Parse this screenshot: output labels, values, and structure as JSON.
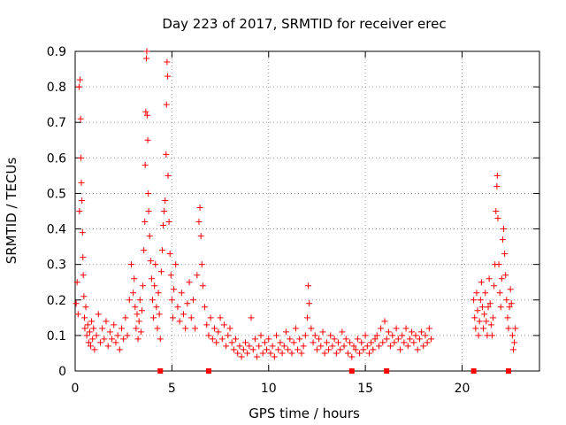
{
  "chart_data": {
    "type": "scatter",
    "title": "Day 223 of 2017, SRMTID for receiver erec",
    "xlabel": "GPS time / hours",
    "ylabel": "SRMTID / TECUs",
    "xlim": [
      0,
      24
    ],
    "ylim": [
      0,
      0.9
    ],
    "x_ticks": [
      0,
      5,
      10,
      15,
      20
    ],
    "y_ticks": [
      0,
      0.1,
      0.2,
      0.3,
      0.4,
      0.5,
      0.6,
      0.7,
      0.8,
      0.9
    ],
    "x_tick_labels": [
      "0",
      "5",
      "10",
      "15",
      "20"
    ],
    "y_tick_labels": [
      "0",
      "0.1",
      "0.2",
      "0.3",
      "0.4",
      "0.5",
      "0.6",
      "0.7",
      "0.8",
      "0.9"
    ],
    "grid": true,
    "marker": "+",
    "color": "#ff0000",
    "gap_markers_x": [
      4.4,
      6.9,
      14.3,
      16.1,
      20.6,
      22.4
    ],
    "series": [
      {
        "name": "SRMTID",
        "points": [
          [
            0.05,
            0.19
          ],
          [
            0.1,
            0.25
          ],
          [
            0.15,
            0.16
          ],
          [
            0.2,
            0.8
          ],
          [
            0.22,
            0.45
          ],
          [
            0.25,
            0.82
          ],
          [
            0.28,
            0.71
          ],
          [
            0.3,
            0.6
          ],
          [
            0.32,
            0.53
          ],
          [
            0.35,
            0.48
          ],
          [
            0.38,
            0.39
          ],
          [
            0.4,
            0.32
          ],
          [
            0.42,
            0.27
          ],
          [
            0.45,
            0.21
          ],
          [
            0.48,
            0.15
          ],
          [
            0.5,
            0.12
          ],
          [
            0.55,
            0.18
          ],
          [
            0.6,
            0.1
          ],
          [
            0.65,
            0.13
          ],
          [
            0.7,
            0.08
          ],
          [
            0.75,
            0.11
          ],
          [
            0.8,
            0.07
          ],
          [
            0.85,
            0.14
          ],
          [
            0.9,
            0.09
          ],
          [
            0.95,
            0.12
          ],
          [
            1.0,
            0.06
          ],
          [
            1.1,
            0.1
          ],
          [
            1.2,
            0.16
          ],
          [
            1.3,
            0.08
          ],
          [
            1.4,
            0.12
          ],
          [
            1.5,
            0.09
          ],
          [
            1.6,
            0.14
          ],
          [
            1.7,
            0.07
          ],
          [
            1.8,
            0.11
          ],
          [
            1.9,
            0.09
          ],
          [
            2.0,
            0.13
          ],
          [
            2.1,
            0.08
          ],
          [
            2.2,
            0.1
          ],
          [
            2.3,
            0.06
          ],
          [
            2.4,
            0.12
          ],
          [
            2.5,
            0.09
          ],
          [
            2.6,
            0.15
          ],
          [
            2.7,
            0.1
          ],
          [
            2.8,
            0.2
          ],
          [
            2.9,
            0.3
          ],
          [
            3.0,
            0.22
          ],
          [
            3.05,
            0.26
          ],
          [
            3.1,
            0.18
          ],
          [
            3.15,
            0.12
          ],
          [
            3.2,
            0.16
          ],
          [
            3.25,
            0.09
          ],
          [
            3.3,
            0.14
          ],
          [
            3.35,
            0.2
          ],
          [
            3.4,
            0.11
          ],
          [
            3.45,
            0.17
          ],
          [
            3.5,
            0.24
          ],
          [
            3.55,
            0.34
          ],
          [
            3.6,
            0.42
          ],
          [
            3.62,
            0.58
          ],
          [
            3.65,
            0.73
          ],
          [
            3.68,
            0.88
          ],
          [
            3.7,
            0.9
          ],
          [
            3.72,
            0.72
          ],
          [
            3.75,
            0.65
          ],
          [
            3.78,
            0.5
          ],
          [
            3.8,
            0.45
          ],
          [
            3.85,
            0.38
          ],
          [
            3.9,
            0.31
          ],
          [
            3.95,
            0.26
          ],
          [
            4.0,
            0.2
          ],
          [
            4.05,
            0.15
          ],
          [
            4.1,
            0.24
          ],
          [
            4.15,
            0.3
          ],
          [
            4.2,
            0.18
          ],
          [
            4.25,
            0.12
          ],
          [
            4.3,
            0.22
          ],
          [
            4.35,
            0.16
          ],
          [
            4.4,
            0.09
          ],
          [
            4.45,
            0.28
          ],
          [
            4.5,
            0.34
          ],
          [
            4.55,
            0.41
          ],
          [
            4.6,
            0.45
          ],
          [
            4.65,
            0.48
          ],
          [
            4.7,
            0.61
          ],
          [
            4.72,
            0.75
          ],
          [
            4.75,
            0.87
          ],
          [
            4.78,
            0.83
          ],
          [
            4.8,
            0.55
          ],
          [
            4.85,
            0.42
          ],
          [
            4.9,
            0.33
          ],
          [
            4.95,
            0.27
          ],
          [
            5.0,
            0.2
          ],
          [
            5.05,
            0.15
          ],
          [
            5.1,
            0.23
          ],
          [
            5.2,
            0.3
          ],
          [
            5.3,
            0.18
          ],
          [
            5.4,
            0.14
          ],
          [
            5.5,
            0.22
          ],
          [
            5.6,
            0.16
          ],
          [
            5.7,
            0.12
          ],
          [
            5.8,
            0.19
          ],
          [
            5.9,
            0.25
          ],
          [
            6.0,
            0.15
          ],
          [
            6.1,
            0.2
          ],
          [
            6.2,
            0.12
          ],
          [
            6.3,
            0.27
          ],
          [
            6.4,
            0.42
          ],
          [
            6.45,
            0.46
          ],
          [
            6.5,
            0.38
          ],
          [
            6.55,
            0.3
          ],
          [
            6.6,
            0.24
          ],
          [
            6.7,
            0.18
          ],
          [
            6.8,
            0.13
          ],
          [
            6.9,
            0.1
          ],
          [
            7.0,
            0.15
          ],
          [
            7.1,
            0.09
          ],
          [
            7.2,
            0.12
          ],
          [
            7.3,
            0.08
          ],
          [
            7.4,
            0.11
          ],
          [
            7.5,
            0.15
          ],
          [
            7.6,
            0.09
          ],
          [
            7.7,
            0.13
          ],
          [
            7.8,
            0.07
          ],
          [
            7.9,
            0.1
          ],
          [
            8.0,
            0.12
          ],
          [
            8.1,
            0.08
          ],
          [
            8.2,
            0.06
          ],
          [
            8.3,
            0.09
          ],
          [
            8.4,
            0.05
          ],
          [
            8.5,
            0.07
          ],
          [
            8.6,
            0.04
          ],
          [
            8.7,
            0.06
          ],
          [
            8.8,
            0.08
          ],
          [
            8.9,
            0.05
          ],
          [
            9.0,
            0.07
          ],
          [
            9.1,
            0.15
          ],
          [
            9.2,
            0.06
          ],
          [
            9.3,
            0.09
          ],
          [
            9.4,
            0.04
          ],
          [
            9.5,
            0.07
          ],
          [
            9.6,
            0.1
          ],
          [
            9.7,
            0.05
          ],
          [
            9.8,
            0.08
          ],
          [
            9.9,
            0.06
          ],
          [
            10.0,
            0.09
          ],
          [
            10.1,
            0.05
          ],
          [
            10.2,
            0.07
          ],
          [
            10.3,
            0.04
          ],
          [
            10.4,
            0.1
          ],
          [
            10.5,
            0.06
          ],
          [
            10.6,
            0.08
          ],
          [
            10.7,
            0.05
          ],
          [
            10.8,
            0.07
          ],
          [
            10.9,
            0.11
          ],
          [
            11.0,
            0.06
          ],
          [
            11.1,
            0.09
          ],
          [
            11.2,
            0.05
          ],
          [
            11.3,
            0.08
          ],
          [
            11.4,
            0.12
          ],
          [
            11.5,
            0.06
          ],
          [
            11.6,
            0.09
          ],
          [
            11.7,
            0.05
          ],
          [
            11.8,
            0.07
          ],
          [
            11.9,
            0.1
          ],
          [
            12.0,
            0.15
          ],
          [
            12.05,
            0.24
          ],
          [
            12.1,
            0.19
          ],
          [
            12.2,
            0.12
          ],
          [
            12.3,
            0.08
          ],
          [
            12.4,
            0.1
          ],
          [
            12.5,
            0.06
          ],
          [
            12.6,
            0.09
          ],
          [
            12.7,
            0.07
          ],
          [
            12.8,
            0.11
          ],
          [
            12.9,
            0.05
          ],
          [
            13.0,
            0.08
          ],
          [
            13.1,
            0.06
          ],
          [
            13.2,
            0.1
          ],
          [
            13.3,
            0.07
          ],
          [
            13.4,
            0.09
          ],
          [
            13.5,
            0.05
          ],
          [
            13.6,
            0.08
          ],
          [
            13.7,
            0.06
          ],
          [
            13.8,
            0.11
          ],
          [
            13.9,
            0.07
          ],
          [
            14.0,
            0.09
          ],
          [
            14.1,
            0.05
          ],
          [
            14.2,
            0.08
          ],
          [
            14.3,
            0.04
          ],
          [
            14.4,
            0.07
          ],
          [
            14.5,
            0.06
          ],
          [
            14.6,
            0.09
          ],
          [
            14.7,
            0.05
          ],
          [
            14.8,
            0.08
          ],
          [
            14.9,
            0.06
          ],
          [
            15.0,
            0.1
          ],
          [
            15.1,
            0.07
          ],
          [
            15.2,
            0.05
          ],
          [
            15.3,
            0.08
          ],
          [
            15.4,
            0.06
          ],
          [
            15.5,
            0.09
          ],
          [
            15.6,
            0.1
          ],
          [
            15.7,
            0.07
          ],
          [
            15.8,
            0.12
          ],
          [
            15.9,
            0.08
          ],
          [
            16.0,
            0.14
          ],
          [
            16.1,
            0.09
          ],
          [
            16.2,
            0.11
          ],
          [
            16.3,
            0.07
          ],
          [
            16.4,
            0.1
          ],
          [
            16.5,
            0.08
          ],
          [
            16.6,
            0.12
          ],
          [
            16.7,
            0.09
          ],
          [
            16.8,
            0.06
          ],
          [
            16.9,
            0.1
          ],
          [
            17.0,
            0.08
          ],
          [
            17.1,
            0.12
          ],
          [
            17.2,
            0.07
          ],
          [
            17.3,
            0.09
          ],
          [
            17.4,
            0.11
          ],
          [
            17.5,
            0.08
          ],
          [
            17.6,
            0.1
          ],
          [
            17.7,
            0.06
          ],
          [
            17.8,
            0.09
          ],
          [
            17.9,
            0.11
          ],
          [
            18.0,
            0.07
          ],
          [
            18.1,
            0.1
          ],
          [
            18.2,
            0.08
          ],
          [
            18.3,
            0.12
          ],
          [
            18.4,
            0.09
          ],
          [
            20.6,
            0.2
          ],
          [
            20.65,
            0.15
          ],
          [
            20.7,
            0.12
          ],
          [
            20.75,
            0.22
          ],
          [
            20.8,
            0.17
          ],
          [
            20.85,
            0.1
          ],
          [
            20.9,
            0.14
          ],
          [
            20.95,
            0.2
          ],
          [
            21.0,
            0.25
          ],
          [
            21.05,
            0.18
          ],
          [
            21.1,
            0.12
          ],
          [
            21.15,
            0.16
          ],
          [
            21.2,
            0.22
          ],
          [
            21.25,
            0.14
          ],
          [
            21.3,
            0.1
          ],
          [
            21.35,
            0.18
          ],
          [
            21.4,
            0.26
          ],
          [
            21.45,
            0.19
          ],
          [
            21.5,
            0.13
          ],
          [
            21.55,
            0.1
          ],
          [
            21.6,
            0.15
          ],
          [
            21.65,
            0.24
          ],
          [
            21.7,
            0.3
          ],
          [
            21.75,
            0.45
          ],
          [
            21.8,
            0.52
          ],
          [
            21.82,
            0.55
          ],
          [
            21.85,
            0.43
          ],
          [
            21.9,
            0.3
          ],
          [
            21.95,
            0.22
          ],
          [
            22.0,
            0.18
          ],
          [
            22.05,
            0.26
          ],
          [
            22.1,
            0.37
          ],
          [
            22.15,
            0.4
          ],
          [
            22.2,
            0.33
          ],
          [
            22.25,
            0.27
          ],
          [
            22.3,
            0.2
          ],
          [
            22.35,
            0.15
          ],
          [
            22.4,
            0.12
          ],
          [
            22.45,
            0.18
          ],
          [
            22.5,
            0.23
          ],
          [
            22.55,
            0.19
          ],
          [
            22.6,
            0.1
          ],
          [
            22.65,
            0.06
          ],
          [
            22.7,
            0.08
          ],
          [
            22.75,
            0.12
          ]
        ]
      }
    ]
  }
}
